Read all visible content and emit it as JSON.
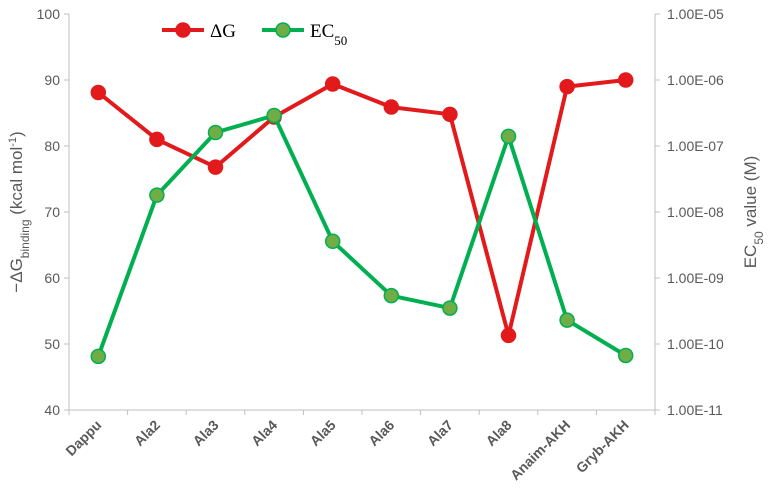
{
  "chart_data": {
    "type": "line",
    "categories": [
      "Dappu",
      "Ala2",
      "Ala3",
      "Ala4",
      "Ala5",
      "Ala6",
      "Ala7",
      "Ala8",
      "Anaim-AKH",
      "Gryb-AKH"
    ],
    "series": [
      {
        "name": "ΔG",
        "axis": "left",
        "color": "#e31a1c",
        "marker_color": "#e31a1c",
        "values": [
          88.1,
          81.0,
          76.8,
          84.4,
          89.4,
          85.9,
          84.8,
          51.3,
          89.0,
          90.0
        ]
      },
      {
        "name": "EC",
        "name_sub": "50",
        "axis": "right",
        "color": "#00b050",
        "marker_color": "#70ad47",
        "values": [
          6.5e-11,
          1.8e-08,
          1.6e-07,
          2.9e-07,
          3.6e-09,
          5.4e-10,
          3.5e-10,
          1.4e-07,
          2.3e-10,
          6.7e-11
        ]
      }
    ],
    "y_left": {
      "label_prefix": "−ΔG",
      "label_sub": "binding",
      "label_suffix": " (kcal mol",
      "label_sup": "-1",
      "label_end": ")",
      "ylim": [
        40,
        100
      ],
      "ticks": [
        "40",
        "50",
        "60",
        "70",
        "80",
        "90",
        "100"
      ]
    },
    "y_right": {
      "label_prefix": "EC",
      "label_sub": "50",
      "label_suffix": " value (M)",
      "scale": "log",
      "ylim": [
        1e-11,
        1e-05
      ],
      "ticks": [
        "1.00E-11",
        "1.00E-10",
        "1.00E-09",
        "1.00E-08",
        "1.00E-07",
        "1.00E-06",
        "1.00E-05"
      ]
    },
    "legend": {
      "placement": "top-left"
    },
    "grid": false
  }
}
